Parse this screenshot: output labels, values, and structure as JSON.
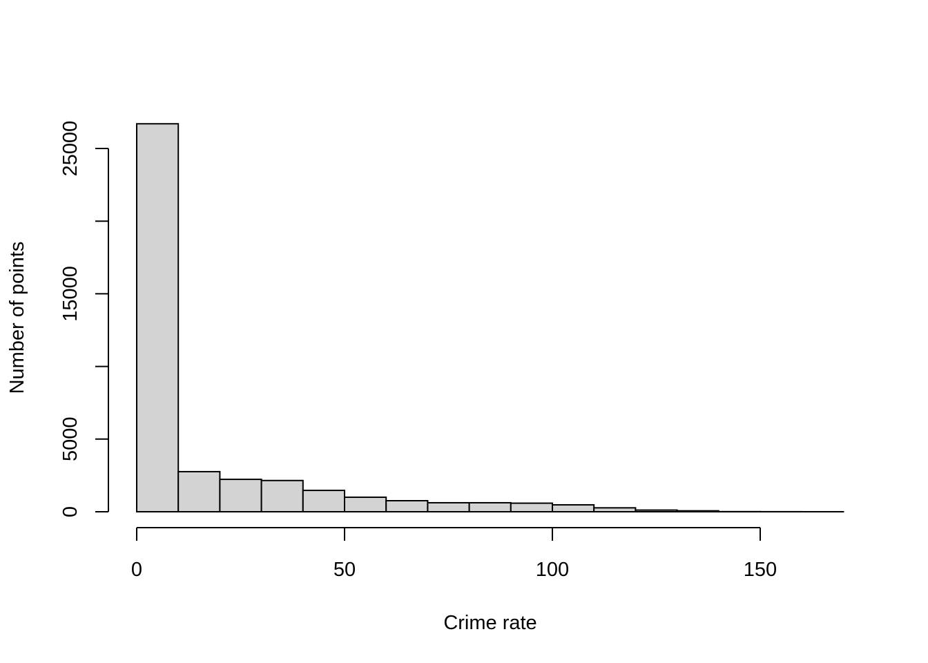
{
  "chart_data": {
    "type": "bar",
    "title": "",
    "xlabel": "Crime rate",
    "ylabel": "Number of points",
    "bin_edges": [
      0,
      10,
      20,
      30,
      40,
      50,
      60,
      70,
      80,
      90,
      100,
      110,
      120,
      130,
      140,
      150,
      160,
      170
    ],
    "values": [
      26700,
      2760,
      2230,
      2150,
      1470,
      1000,
      760,
      620,
      620,
      590,
      475,
      270,
      115,
      65,
      10,
      5,
      2
    ],
    "xlim": [
      0,
      170
    ],
    "ylim": [
      0,
      26700
    ],
    "x_ticks": [
      0,
      50,
      100,
      150
    ],
    "x_tick_labels": [
      "0",
      "50",
      "100",
      "150"
    ],
    "y_ticks": [
      0,
      5000,
      10000,
      15000,
      20000,
      25000
    ],
    "y_tick_labels": [
      "0",
      "5000",
      "",
      "15000",
      "",
      "25000"
    ],
    "bar_fill": "#d3d3d3",
    "bar_stroke": "#000000",
    "grid": false
  }
}
